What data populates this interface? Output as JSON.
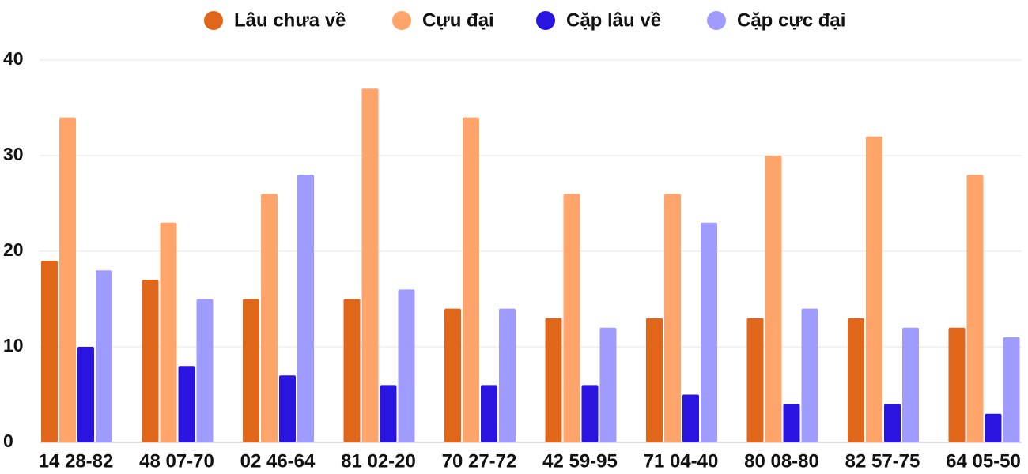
{
  "chart_data": {
    "type": "bar",
    "categories": [
      "14 28-82",
      "48 07-70",
      "02 46-64",
      "81 02-20",
      "70 27-72",
      "42 59-95",
      "71 04-40",
      "80 08-80",
      "82 57-75",
      "64 05-50"
    ],
    "series": [
      {
        "name": "Lâu chưa về",
        "color": "#e0661a",
        "values": [
          19,
          17,
          15,
          15,
          14,
          13,
          13,
          13,
          13,
          12
        ]
      },
      {
        "name": "Cựu đại",
        "color": "#ffa56b",
        "values": [
          34,
          23,
          26,
          37,
          34,
          26,
          26,
          30,
          32,
          28
        ]
      },
      {
        "name": "Cặp lâu về",
        "color": "#2a14e0",
        "values": [
          10,
          8,
          7,
          6,
          6,
          6,
          5,
          4,
          4,
          3
        ]
      },
      {
        "name": "Cặp cực đại",
        "color": "#a09cff",
        "values": [
          18,
          15,
          28,
          16,
          14,
          12,
          23,
          14,
          12,
          11
        ]
      }
    ],
    "ylim": [
      0,
      40
    ],
    "yticks": [
      0,
      10,
      20,
      30,
      40
    ],
    "grid": true,
    "legend": "top"
  }
}
